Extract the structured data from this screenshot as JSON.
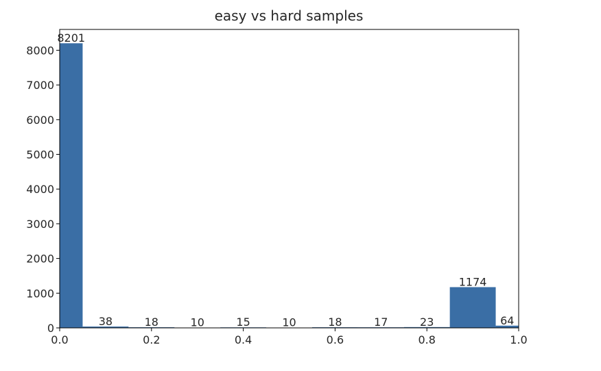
{
  "chart_data": {
    "type": "bar",
    "title": "easy vs hard samples",
    "xlabel": "",
    "ylabel": "",
    "bin_edges": [
      0.0,
      0.05,
      0.15,
      0.25,
      0.35,
      0.45,
      0.55,
      0.65,
      0.75,
      0.85,
      0.95,
      1.0
    ],
    "values": [
      8201,
      38,
      18,
      10,
      15,
      10,
      18,
      17,
      23,
      1174,
      64
    ],
    "xlim": [
      0.0,
      1.0
    ],
    "ylim": [
      0,
      8600
    ],
    "xticks": [
      "0.0",
      "0.2",
      "0.4",
      "0.6",
      "0.8",
      "1.0"
    ],
    "yticks": [
      "0",
      "1000",
      "2000",
      "3000",
      "4000",
      "5000",
      "6000",
      "7000",
      "8000"
    ],
    "bar_color": "#3a6ea5",
    "grid": false
  }
}
